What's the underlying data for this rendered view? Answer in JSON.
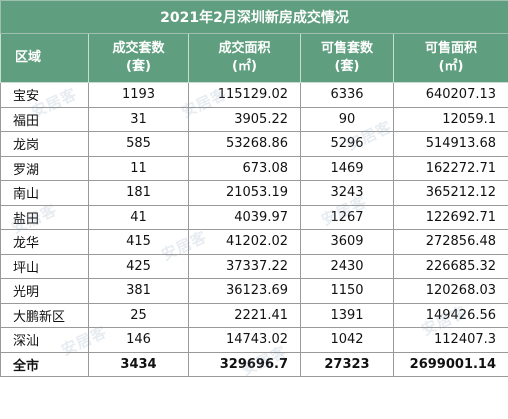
{
  "title": "2021年2月深圳新房成交情况",
  "headers": [
    {
      "line1": "区域",
      "line2": ""
    },
    {
      "line1": "成交套数",
      "line2": "(套)"
    },
    {
      "line1": "成交面积",
      "line2": "(㎡)"
    },
    {
      "line1": "可售套数",
      "line2": "(套)"
    },
    {
      "line1": "可售面积",
      "line2": "(㎡)"
    }
  ],
  "rows": [
    {
      "region": "宝安",
      "deal_units": "1193",
      "deal_area": "115129.02",
      "avail_units": "6336",
      "avail_area": "640207.13"
    },
    {
      "region": "福田",
      "deal_units": "31",
      "deal_area": "3905.22",
      "avail_units": "90",
      "avail_area": "12059.1"
    },
    {
      "region": "龙岗",
      "deal_units": "585",
      "deal_area": "53268.86",
      "avail_units": "5296",
      "avail_area": "514913.68"
    },
    {
      "region": "罗湖",
      "deal_units": "11",
      "deal_area": "673.08",
      "avail_units": "1469",
      "avail_area": "162272.71"
    },
    {
      "region": "南山",
      "deal_units": "181",
      "deal_area": "21053.19",
      "avail_units": "3243",
      "avail_area": "365212.12"
    },
    {
      "region": "盐田",
      "deal_units": "41",
      "deal_area": "4039.97",
      "avail_units": "1267",
      "avail_area": "122692.71"
    },
    {
      "region": "龙华",
      "deal_units": "415",
      "deal_area": "41202.02",
      "avail_units": "3609",
      "avail_area": "272856.48"
    },
    {
      "region": "坪山",
      "deal_units": "425",
      "deal_area": "37337.22",
      "avail_units": "2430",
      "avail_area": "226685.32"
    },
    {
      "region": "光明",
      "deal_units": "381",
      "deal_area": "36123.69",
      "avail_units": "1150",
      "avail_area": "120268.03"
    },
    {
      "region": "大鹏新区",
      "deal_units": "25",
      "deal_area": "2221.41",
      "avail_units": "1391",
      "avail_area": "149426.56"
    },
    {
      "region": "深汕",
      "deal_units": "146",
      "deal_area": "14743.02",
      "avail_units": "1042",
      "avail_area": "112407.3"
    }
  ],
  "total": {
    "region": "全市",
    "deal_units": "3434",
    "deal_area": "329696.7",
    "avail_units": "27323",
    "avail_area": "2699001.14"
  },
  "watermark": "安居客",
  "colors": {
    "header_bg": "#5f9f7f",
    "header_text": "#ffffff",
    "border": "#9a9a9a"
  }
}
